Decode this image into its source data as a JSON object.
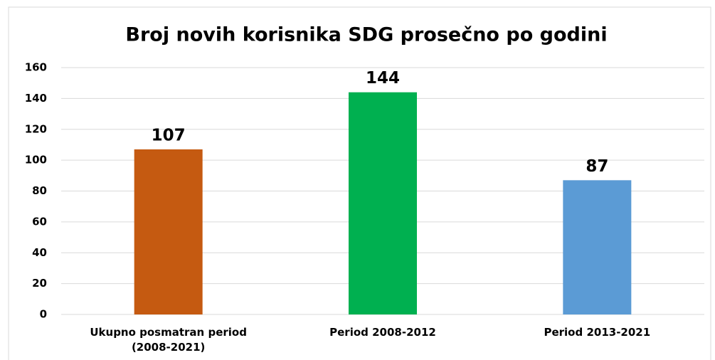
{
  "chart_data": {
    "type": "bar",
    "title": "Broj novih korisnika SDG prosečno po godini",
    "categories": [
      "Ukupno posmatran period (2008-2021)",
      "Period 2008-2012",
      "Period 2013-2021"
    ],
    "values": [
      107,
      144,
      87
    ],
    "colors": [
      "#c55a11",
      "#00b050",
      "#5b9bd5"
    ],
    "ylim": [
      0,
      160
    ],
    "yticks": [
      0,
      20,
      40,
      60,
      80,
      100,
      120,
      140,
      160
    ],
    "grid": true
  }
}
